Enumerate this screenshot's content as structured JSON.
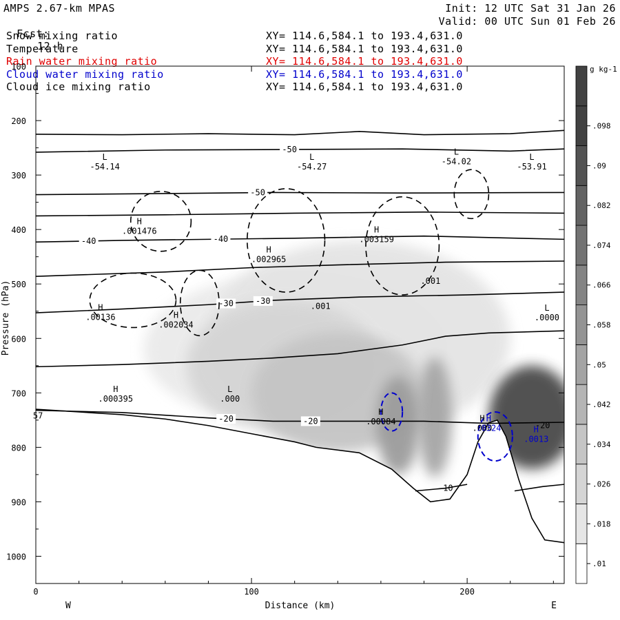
{
  "header": {
    "model": "AMPS 2.67-km MPAS",
    "fcst_label": "Fcst:",
    "fcst_value": "12 h",
    "init": "Init: 12 UTC Sat 31 Jan 26",
    "valid": "Valid: 00 UTC Sun 01 Feb 26"
  },
  "fields": [
    {
      "name": "Snow mixing ratio",
      "xy": "XY= 114.6,584.1 to 193.4,631.0",
      "color": "#000000"
    },
    {
      "name": "Temperature",
      "xy": "XY= 114.6,584.1 to 193.4,631.0",
      "color": "#000000"
    },
    {
      "name": "Rain water mixing ratio",
      "xy": "XY= 114.6,584.1 to 193.4,631.0",
      "color": "#e00000"
    },
    {
      "name": "Cloud water mixing ratio",
      "xy": "XY= 114.6,584.1 to 193.4,631.0",
      "color": "#0000cc"
    },
    {
      "name": "Cloud ice mixing ratio",
      "xy": "XY= 114.6,584.1 to 193.4,631.0",
      "color": "#000000"
    }
  ],
  "chart_data": {
    "type": "heatmap",
    "xlabel": "Distance (km)",
    "ylabel": "Pressure (hPa)",
    "xlim": [
      0,
      245
    ],
    "ylim": [
      1050,
      100
    ],
    "x_ticks": [
      0,
      100,
      200
    ],
    "x_end_labels": {
      "left": "W",
      "right": "E"
    },
    "y_ticks": [
      100,
      200,
      300,
      400,
      500,
      600,
      700,
      800,
      900,
      1000
    ],
    "colorbar": {
      "unit": "g kg-1",
      "levels": [
        0.01,
        0.018,
        0.026,
        0.034,
        0.042,
        0.05,
        0.058,
        0.066,
        0.074,
        0.082,
        0.09,
        0.098
      ],
      "labels": [
        ".01",
        ".018",
        ".026",
        ".034",
        ".042",
        ".05",
        ".058",
        ".066",
        ".074",
        ".082",
        ".09",
        ".098"
      ]
    },
    "snow_blobs": [
      {
        "x": 230,
        "p": 745,
        "rx": 20,
        "rp": 95,
        "level": 0.09
      },
      {
        "x": 168,
        "p": 760,
        "rx": 10,
        "rp": 90,
        "level": 0.05
      },
      {
        "x": 185,
        "p": 745,
        "rx": 8,
        "rp": 110,
        "level": 0.045
      },
      {
        "x": 140,
        "p": 700,
        "rx": 40,
        "rp": 110,
        "level": 0.03
      },
      {
        "x": 115,
        "p": 650,
        "rx": 45,
        "rp": 120,
        "level": 0.022
      },
      {
        "x": 150,
        "p": 600,
        "rx": 70,
        "rp": 180,
        "level": 0.015
      },
      {
        "x": 120,
        "p": 620,
        "rx": 70,
        "rp": 140,
        "level": 0.012
      }
    ],
    "terrain_pressure": [
      [
        0,
        730
      ],
      [
        20,
        735
      ],
      [
        40,
        740
      ],
      [
        60,
        748
      ],
      [
        80,
        760
      ],
      [
        100,
        775
      ],
      [
        120,
        790
      ],
      [
        130,
        800
      ],
      [
        150,
        810
      ],
      [
        165,
        840
      ],
      [
        175,
        875
      ],
      [
        183,
        900
      ],
      [
        192,
        895
      ],
      [
        200,
        850
      ],
      [
        205,
        790
      ],
      [
        210,
        755
      ],
      [
        214,
        750
      ],
      [
        218,
        780
      ],
      [
        224,
        860
      ],
      [
        230,
        930
      ],
      [
        236,
        970
      ],
      [
        245,
        975
      ]
    ],
    "isotherms": [
      {
        "label": "-50",
        "points": [
          [
            0,
            225
          ],
          [
            40,
            226
          ],
          [
            80,
            224
          ],
          [
            120,
            226
          ],
          [
            150,
            220
          ],
          [
            180,
            226
          ],
          [
            220,
            224
          ],
          [
            245,
            218
          ]
        ]
      },
      {
        "label": "-50",
        "points": [
          [
            0,
            258
          ],
          [
            60,
            254
          ],
          [
            120,
            253
          ],
          [
            170,
            252
          ],
          [
            220,
            256
          ],
          [
            245,
            252
          ]
        ]
      },
      {
        "label": "-50",
        "points": [
          [
            0,
            336
          ],
          [
            60,
            334
          ],
          [
            110,
            332
          ],
          [
            170,
            333
          ],
          [
            245,
            332
          ]
        ]
      },
      {
        "label": "",
        "points": [
          [
            0,
            375
          ],
          [
            60,
            373
          ],
          [
            120,
            370
          ],
          [
            180,
            368
          ],
          [
            245,
            370
          ]
        ]
      },
      {
        "label": "-40",
        "points": [
          [
            0,
            423
          ],
          [
            40,
            420
          ],
          [
            80,
            418
          ],
          [
            120,
            416
          ],
          [
            180,
            412
          ],
          [
            245,
            418
          ]
        ]
      },
      {
        "label": "",
        "points": [
          [
            0,
            486
          ],
          [
            60,
            478
          ],
          [
            100,
            470
          ],
          [
            140,
            465
          ],
          [
            190,
            460
          ],
          [
            245,
            458
          ]
        ]
      },
      {
        "label": "-30",
        "points": [
          [
            0,
            553
          ],
          [
            40,
            546
          ],
          [
            80,
            538
          ],
          [
            110,
            530
          ],
          [
            150,
            524
          ],
          [
            200,
            520
          ],
          [
            245,
            515
          ]
        ]
      },
      {
        "label": "",
        "points": [
          [
            0,
            652
          ],
          [
            40,
            648
          ],
          [
            80,
            642
          ],
          [
            110,
            636
          ],
          [
            140,
            628
          ],
          [
            170,
            612
          ],
          [
            190,
            596
          ],
          [
            210,
            590
          ],
          [
            245,
            586
          ]
        ]
      },
      {
        "label": "-20",
        "points": [
          [
            0,
            732
          ],
          [
            40,
            736
          ],
          [
            80,
            746
          ],
          [
            110,
            752
          ],
          [
            150,
            752
          ],
          [
            180,
            752
          ],
          [
            210,
            756
          ],
          [
            245,
            754
          ]
        ]
      }
    ],
    "isotherm_warm": [
      {
        "label": "-10",
        "points": [
          [
            176,
            880
          ],
          [
            190,
            875
          ],
          [
            200,
            868
          ]
        ]
      },
      {
        "label": "-10",
        "points": [
          [
            222,
            880
          ],
          [
            235,
            872
          ],
          [
            245,
            868
          ]
        ]
      }
    ],
    "annotations": [
      {
        "kind": "L",
        "value": "-54.14",
        "x": 32,
        "p": 290,
        "color": "#000000"
      },
      {
        "kind": "L",
        "value": "-54.27",
        "x": 128,
        "p": 290,
        "color": "#000000"
      },
      {
        "kind": "L",
        "value": "-54.02",
        "x": 195,
        "p": 280,
        "color": "#000000"
      },
      {
        "kind": "L",
        "value": "-53.91",
        "x": 230,
        "p": 290,
        "color": "#000000"
      },
      {
        "kind": "H",
        "value": ".001476",
        "x": 48,
        "p": 408,
        "color": "#000000"
      },
      {
        "kind": "H",
        "value": ".002965",
        "x": 108,
        "p": 460,
        "color": "#000000"
      },
      {
        "kind": "H",
        "value": ".003159",
        "x": 158,
        "p": 423,
        "color": "#000000"
      },
      {
        "kind": "H",
        "value": ".00136",
        "x": 30,
        "p": 566,
        "color": "#000000"
      },
      {
        "kind": "H",
        "value": ".002034",
        "x": 65,
        "p": 580,
        "color": "#000000"
      },
      {
        "kind": "L",
        "value": ".0000",
        "x": 237,
        "p": 567,
        "color": "#000000"
      },
      {
        "kind": "H",
        "value": ".000395",
        "x": 37,
        "p": 716,
        "color": "#000000"
      },
      {
        "kind": "L",
        "value": ".000",
        "x": 90,
        "p": 716,
        "color": "#000000"
      },
      {
        "kind": "H",
        "value": ".00084",
        "x": 160,
        "p": 758,
        "color": "#000000"
      },
      {
        "kind": "H",
        "value": ".000",
        "x": 207,
        "p": 770,
        "color": "#000000"
      },
      {
        "kind": "H",
        "value": ".0013",
        "x": 232,
        "p": 790,
        "color": "#0000cc"
      },
      {
        "kind": "H",
        "value": ".0324",
        "x": 210,
        "p": 770,
        "color": "#0000cc"
      }
    ],
    "extra_labels": [
      {
        "text": ".001",
        "x": 132,
        "p": 546
      },
      {
        "text": ".001",
        "x": 183,
        "p": 500
      },
      {
        "text": "57",
        "x": 1,
        "p": 747
      },
      {
        "text": "-20",
        "x": 235,
        "p": 765
      },
      {
        "text": "-10",
        "x": 190,
        "p": 880
      }
    ],
    "ice_contours": [
      {
        "cx": 58,
        "p": 385,
        "rx": 14,
        "rp": 55
      },
      {
        "cx": 116,
        "p": 420,
        "rx": 18,
        "rp": 95
      },
      {
        "cx": 170,
        "p": 430,
        "rx": 17,
        "rp": 90
      },
      {
        "cx": 45,
        "p": 530,
        "rx": 20,
        "rp": 50
      },
      {
        "cx": 76,
        "p": 535,
        "rx": 9,
        "rp": 60
      },
      {
        "cx": 202,
        "p": 335,
        "rx": 8,
        "rp": 45
      }
    ],
    "cloud_water_contours": [
      {
        "cx": 165,
        "p": 735,
        "rx": 5,
        "rp": 35
      },
      {
        "cx": 213,
        "p": 780,
        "rx": 8,
        "rp": 45
      }
    ]
  }
}
